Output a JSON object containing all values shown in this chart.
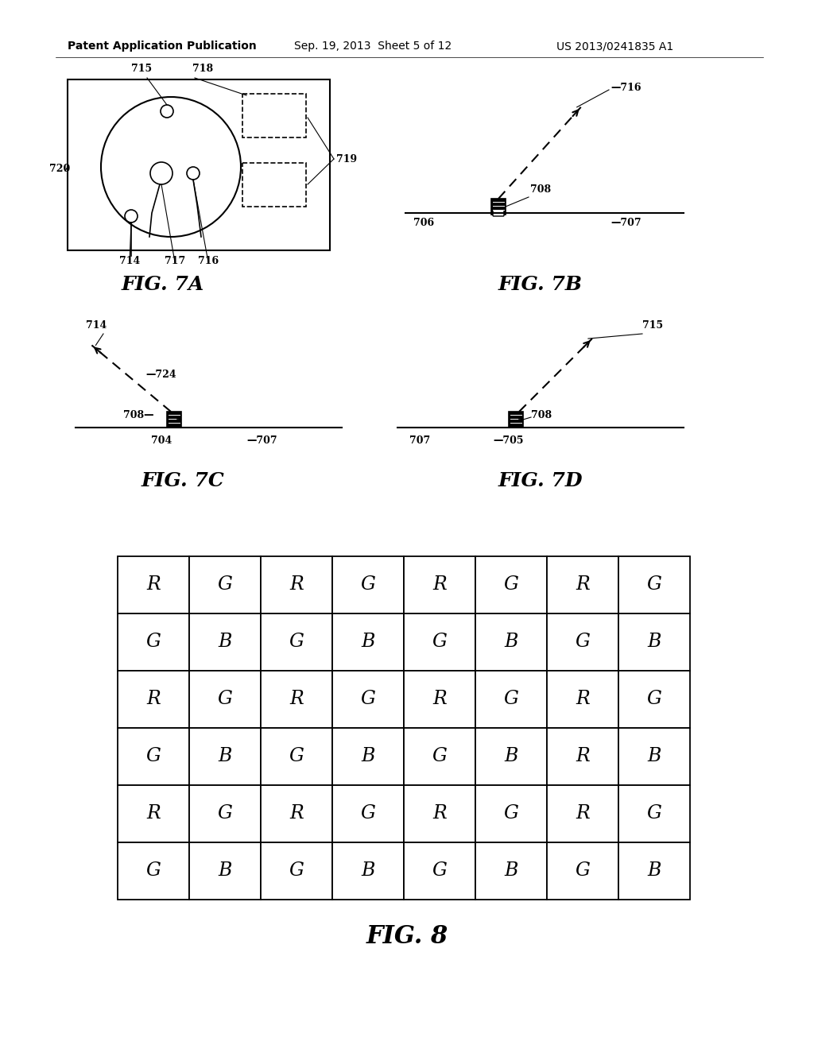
{
  "bg_color": "#ffffff",
  "header_text": "Patent Application Publication",
  "header_date": "Sep. 19, 2013  Sheet 5 of 12",
  "header_patent": "US 2013/0241835 A1",
  "fig8_grid": [
    [
      "R",
      "G",
      "R",
      "G",
      "R",
      "G",
      "R",
      "G"
    ],
    [
      "G",
      "B",
      "G",
      "B",
      "G",
      "B",
      "G",
      "B"
    ],
    [
      "R",
      "G",
      "R",
      "G",
      "R",
      "G",
      "R",
      "G"
    ],
    [
      "G",
      "B",
      "G",
      "B",
      "G",
      "B",
      "R",
      "B"
    ],
    [
      "R",
      "G",
      "R",
      "G",
      "R",
      "G",
      "R",
      "G"
    ],
    [
      "G",
      "B",
      "G",
      "B",
      "G",
      "B",
      "G",
      "B"
    ]
  ],
  "font_size_header": 10,
  "font_size_label": 9,
  "font_size_fig": 18,
  "font_size_cell": 17
}
